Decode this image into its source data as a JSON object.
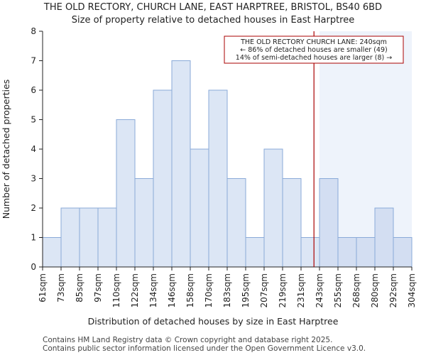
{
  "chart_data": {
    "type": "bar",
    "title": "THE OLD RECTORY, CHURCH LANE, EAST HARPTREE, BRISTOL, BS40 6BD",
    "subtitle": "Size of property relative to detached houses in East Harptree",
    "xlabel": "Distribution of detached houses by size in East Harptree",
    "ylabel": "Number of detached properties",
    "ylim": [
      0,
      8
    ],
    "yticks": [
      "0",
      "1",
      "2",
      "3",
      "4",
      "5",
      "6",
      "7",
      "8"
    ],
    "xticks": [
      "61sqm",
      "73sqm",
      "85sqm",
      "97sqm",
      "110sqm",
      "122sqm",
      "134sqm",
      "146sqm",
      "158sqm",
      "170sqm",
      "183sqm",
      "195sqm",
      "207sqm",
      "219sqm",
      "231sqm",
      "243sqm",
      "255sqm",
      "268sqm",
      "280sqm",
      "292sqm",
      "304sqm"
    ],
    "values": [
      1,
      2,
      2,
      2,
      5,
      3,
      6,
      7,
      4,
      6,
      3,
      1,
      4,
      3,
      1,
      3,
      1,
      1,
      2,
      1
    ],
    "marker_value": 14.7,
    "highlight_from_bin": 15,
    "annotation": {
      "line1": "THE OLD RECTORY CHURCH LANE: 240sqm",
      "line2": "← 86% of detached houses are smaller (49)",
      "line3": "14% of semi-detached houses are larger (8) →"
    },
    "colors": {
      "bar_fill": "#dce6f5",
      "bar_fill_highlight": "#d3def2",
      "bar_edge": "#8aaad8",
      "shade": "#eef3fb",
      "marker": "#aa0000"
    }
  },
  "footer": {
    "line1": "Contains HM Land Registry data © Crown copyright and database right 2025.",
    "line2": "Contains public sector information licensed under the Open Government Licence v3.0."
  }
}
